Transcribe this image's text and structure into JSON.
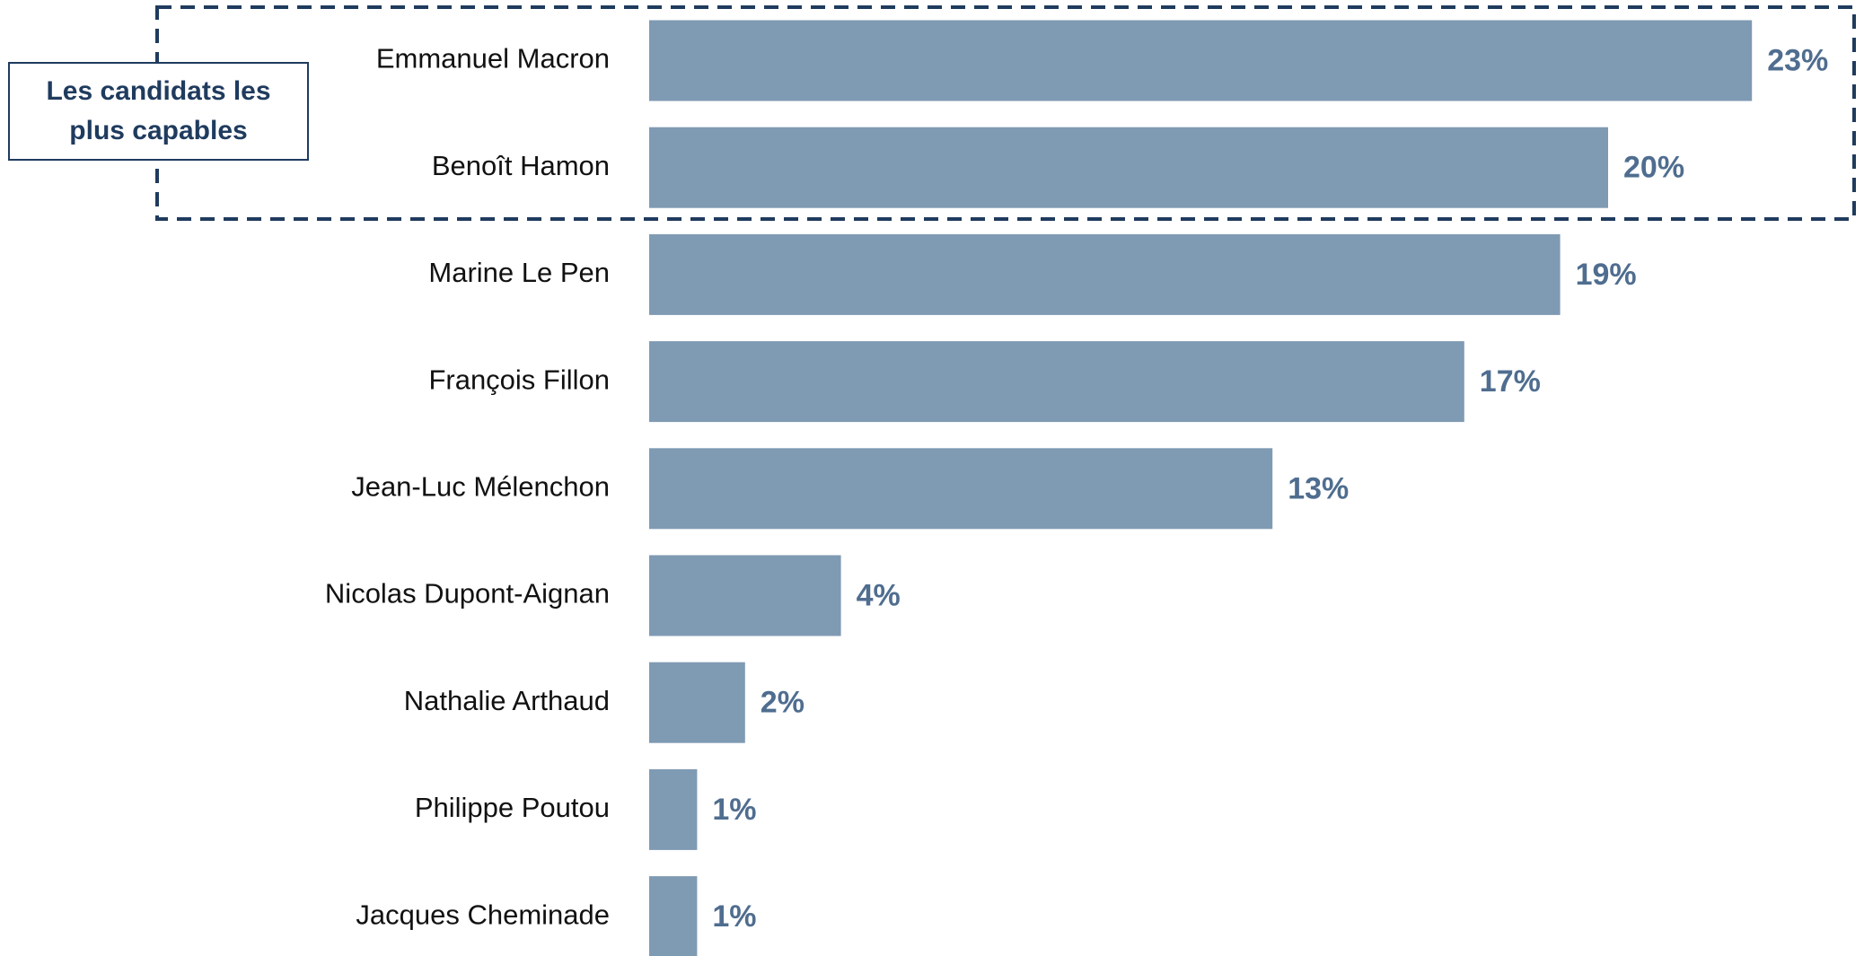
{
  "chart_data": {
    "type": "bar",
    "orientation": "horizontal",
    "annotation": "Les candidats les plus capables",
    "categories": [
      "Emmanuel Macron",
      "Benoît Hamon",
      "Marine Le Pen",
      "François Fillon",
      "Jean-Luc Mélenchon",
      "Nicolas Dupont-Aignan",
      "Nathalie Arthaud",
      "Philippe Poutou",
      "Jacques Cheminade"
    ],
    "values": [
      23,
      20,
      19,
      17,
      13,
      4,
      2,
      1,
      1
    ],
    "value_labels": [
      "23%",
      "20%",
      "19%",
      "17%",
      "13%",
      "4%",
      "2%",
      "1%",
      "1%"
    ],
    "color": "#7f9ab3"
  }
}
